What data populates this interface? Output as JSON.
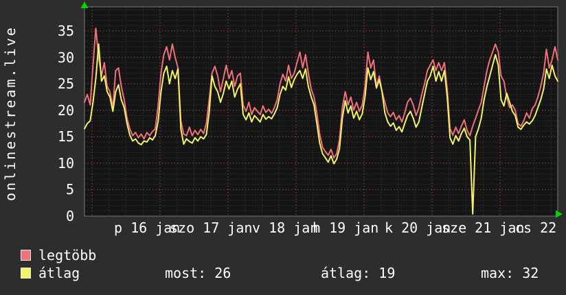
{
  "colors": {
    "background": "#2d2d2d",
    "plot_background": "#151515",
    "plot_border": "#787878",
    "grid_major": "#9e4347",
    "grid_minor": "#3e3e3e",
    "text": "#ffffff",
    "arrow_green": "#00d200",
    "series_max": "#ef7179",
    "series_avg": "#f3f36a"
  },
  "legend": {
    "items": [
      {
        "label": "legtöbb",
        "color": "#ef7179"
      },
      {
        "label": "átlag",
        "color": "#f3f36a"
      }
    ],
    "stats": [
      {
        "text": "most: 26"
      },
      {
        "text": "átlag: 19"
      },
      {
        "text": "max: 32"
      }
    ]
  },
  "chart_data": {
    "type": "line",
    "title": "onlinestream.live",
    "x_axis": {
      "unit": "day",
      "labels": [
        {
          "text": "p 16 jan"
        },
        {
          "text": "szo 17 jan"
        },
        {
          "text": "v 18 jan"
        },
        {
          "text": "h 19 jan"
        },
        {
          "text": "k 20 jan"
        },
        {
          "text": "sze 21 jan"
        },
        {
          "text": "cs 22 jan"
        }
      ]
    },
    "y_axis": {
      "min": 0,
      "max": 39,
      "ticks": [
        {
          "label": "35",
          "value": 35
        },
        {
          "label": "30",
          "value": 30
        },
        {
          "label": "25",
          "value": 25
        },
        {
          "label": "20",
          "value": 20
        },
        {
          "label": "15",
          "value": 15
        },
        {
          "label": "10",
          "value": 10
        },
        {
          "label": "5",
          "value": 5
        },
        {
          "label": "0",
          "value": 0
        }
      ]
    },
    "grid": {
      "h_major_step": 5,
      "h_minor_step": 1,
      "v_major": "1 day",
      "v_minor": "6 h"
    },
    "summary": {
      "most": 26,
      "atlag": 19,
      "max": 32
    },
    "series": [
      {
        "name": "legtöbb",
        "color": "#ef7179",
        "step_hours": 1,
        "values": [
          21.5,
          23,
          21,
          28.5,
          35.5,
          30,
          26.5,
          29,
          24.5,
          23.5,
          20.5,
          27.5,
          28,
          24.5,
          22,
          18.5,
          16.5,
          15.2,
          15.8,
          14.8,
          15.5,
          14.6,
          15.8,
          15.2,
          16,
          16.5,
          21,
          27,
          30.5,
          32,
          29.5,
          32.5,
          30,
          28,
          18,
          15.5,
          15.2,
          16.8,
          15.2,
          16.2,
          15.4,
          16.4,
          15.6,
          17.5,
          22,
          27,
          28.3,
          26.5,
          23.5,
          26,
          28.5,
          26,
          27.5,
          24.5,
          26.5,
          27,
          21,
          19.8,
          21.5,
          19.2,
          20.5,
          19.8,
          19.2,
          20.8,
          19.6,
          20.2,
          19.4,
          20.5,
          22,
          25,
          26.8,
          25.5,
          28.5,
          26,
          27,
          29,
          31,
          28,
          30.5,
          27,
          24,
          22.5,
          19.5,
          15.5,
          13,
          12.2,
          11.5,
          12.6,
          11,
          11.8,
          14.5,
          20.5,
          23.5,
          21,
          22.5,
          20,
          21.5,
          19.8,
          21,
          24.5,
          31,
          28,
          29.5,
          24.5,
          26.5,
          23.5,
          21.5,
          19.5,
          18.8,
          19.6,
          18.2,
          19,
          17.8,
          19.5,
          21.5,
          22.3,
          21,
          19,
          20.5,
          23,
          25,
          27.5,
          28.5,
          29.5,
          27.5,
          29,
          27.5,
          29,
          24,
          16.5,
          15.3,
          16.8,
          15.6,
          17,
          18.2,
          16.2,
          15.2,
          17,
          18.5,
          20,
          21.5,
          24.5,
          27.5,
          29.5,
          31,
          32.5,
          31,
          26.5,
          25.5,
          22.5,
          20.5,
          21,
          20,
          17.5,
          17,
          18,
          19.5,
          18.5,
          20.3,
          21,
          22.5,
          24.5,
          27,
          31.5,
          28,
          29.5,
          32,
          29.5
        ]
      },
      {
        "name": "átlag",
        "color": "#f3f36a",
        "step_hours": 1,
        "values": [
          16.5,
          17.5,
          18,
          21.5,
          26,
          32.5,
          25.5,
          26.5,
          23.5,
          22.5,
          19.8,
          23.5,
          24.8,
          22,
          20.5,
          17.5,
          15.3,
          14.2,
          14.6,
          13.8,
          13.5,
          14.2,
          14,
          14.8,
          14.4,
          15.2,
          18,
          23.5,
          27,
          28.3,
          25,
          27.5,
          26,
          27.8,
          16.5,
          13.6,
          14.6,
          14.1,
          13.8,
          14.8,
          14.2,
          15,
          14.6,
          15.4,
          19.5,
          26.5,
          24.5,
          23.5,
          21.5,
          23.2,
          25.5,
          24,
          25.5,
          22.5,
          24,
          25,
          19.2,
          18.2,
          19.5,
          17.8,
          19,
          18.4,
          17.8,
          19.2,
          18.3,
          18.8,
          18.4,
          19.3,
          20.5,
          23,
          24.5,
          23.8,
          26.3,
          24.3,
          25.8,
          26.8,
          27.5,
          26,
          27.8,
          24.5,
          22.5,
          21,
          17.5,
          13.8,
          11.8,
          11,
          10.2,
          11.4,
          9.9,
          10.8,
          12.8,
          18.5,
          21.8,
          19.5,
          20.8,
          18.5,
          19.8,
          18.2,
          19.3,
          22.5,
          28,
          25.8,
          27.3,
          24.2,
          25.8,
          23.5,
          19.5,
          17.8,
          17,
          17.6,
          16.2,
          16.9,
          15.9,
          17.5,
          19,
          19.8,
          18.5,
          16.8,
          17.8,
          20.5,
          23,
          25.5,
          26.5,
          28.3,
          25.5,
          27.3,
          25.5,
          27.5,
          22.5,
          14.8,
          13.6,
          15.2,
          14.2,
          15.6,
          16.6,
          15,
          14.4,
          0.4,
          15,
          16.5,
          18.5,
          22,
          24.5,
          26.5,
          28.5,
          30.5,
          28.5,
          22,
          20.8,
          23.2,
          21.5,
          19.8,
          19,
          16.8,
          16.4,
          17.2,
          17.8,
          17.4,
          18,
          19,
          20.5,
          22,
          24,
          27.8,
          26,
          28.5,
          26.5,
          25.5
        ]
      }
    ]
  }
}
